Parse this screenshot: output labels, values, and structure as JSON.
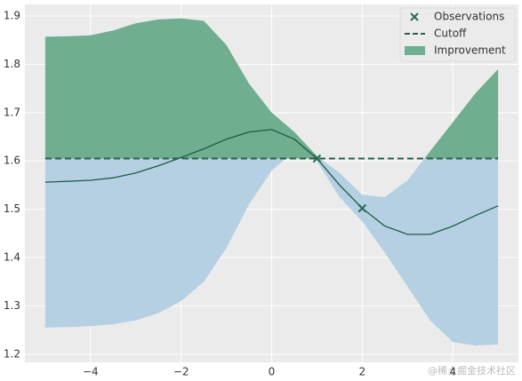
{
  "chart_data": {
    "type": "gp",
    "x": [
      -5,
      -4.5,
      -4,
      -3.5,
      -3,
      -2.5,
      -2,
      -1.5,
      -1,
      -0.5,
      0,
      0.5,
      1,
      1.5,
      2,
      2.5,
      3,
      3.5,
      4,
      4.5,
      5
    ],
    "mean": {
      "color": "#1f5c43",
      "values": [
        1.556,
        1.558,
        1.56,
        1.565,
        1.575,
        1.59,
        1.607,
        1.625,
        1.645,
        1.66,
        1.665,
        1.645,
        1.605,
        1.55,
        1.502,
        1.465,
        1.448,
        1.448,
        1.465,
        1.487,
        1.507
      ]
    },
    "band": {
      "color": "#b5cfe3",
      "upper": [
        1.857,
        1.858,
        1.86,
        1.87,
        1.885,
        1.893,
        1.895,
        1.89,
        1.84,
        1.76,
        1.7,
        1.66,
        1.61,
        1.575,
        1.53,
        1.525,
        1.56,
        1.62,
        1.68,
        1.74,
        1.79
      ],
      "lower": [
        1.255,
        1.256,
        1.258,
        1.262,
        1.27,
        1.285,
        1.31,
        1.35,
        1.42,
        1.51,
        1.58,
        1.62,
        1.6,
        1.525,
        1.475,
        1.41,
        1.34,
        1.27,
        1.225,
        1.218,
        1.22
      ]
    },
    "series": [
      {
        "name": "Observations",
        "color": "#2a6a55",
        "x": [
          1,
          2
        ],
        "values": [
          1.605,
          1.502
        ]
      },
      {
        "name": "Cutoff",
        "color": "#2a5f4c",
        "value": 1.605
      },
      {
        "name": "Improvement",
        "color": "#6fae8e"
      }
    ],
    "xlim": [
      -5.45,
      5.45
    ],
    "ylim": [
      1.183,
      1.924
    ],
    "xticks": [
      {
        "value": -4,
        "label": "−4"
      },
      {
        "value": -2,
        "label": "−2"
      },
      0,
      2,
      4
    ],
    "yticks": [
      1.2,
      1.3,
      1.4,
      1.5,
      1.6,
      1.7,
      1.8,
      1.9
    ],
    "grid": true,
    "legend": "upper right",
    "watermark": "@稀土掘金技术社区"
  }
}
